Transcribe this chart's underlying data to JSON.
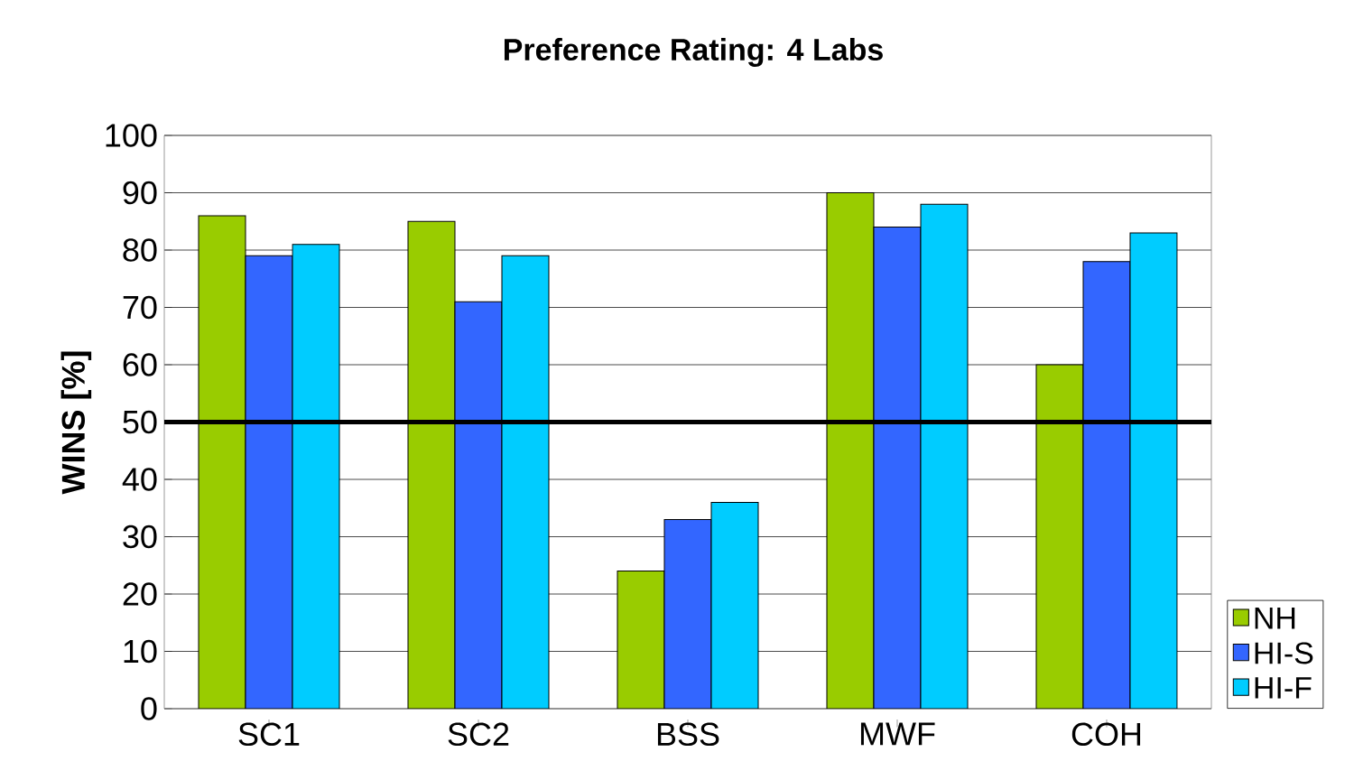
{
  "chart_data": {
    "type": "bar",
    "title": "Preference Rating: 4 Labs",
    "ylabel": "WINS [%]",
    "categories": [
      "SC1",
      "SC2",
      "BSS",
      "MWF",
      "COH"
    ],
    "series": [
      {
        "name": "NH",
        "color": "#99cc00",
        "values": [
          86,
          85,
          24,
          90,
          60
        ]
      },
      {
        "name": "HI-S",
        "color": "#3366ff",
        "values": [
          79,
          71,
          33,
          84,
          78
        ]
      },
      {
        "name": "HI-F",
        "color": "#00ccff",
        "values": [
          81,
          79,
          36,
          88,
          83
        ]
      }
    ],
    "ylim": [
      0,
      100
    ],
    "yticks": [
      0,
      10,
      20,
      30,
      40,
      50,
      60,
      70,
      80,
      90,
      100
    ],
    "grid": "y",
    "legend": "right",
    "ref_lines": [
      {
        "axis": "y",
        "value": 50,
        "color": "#000000"
      }
    ]
  }
}
